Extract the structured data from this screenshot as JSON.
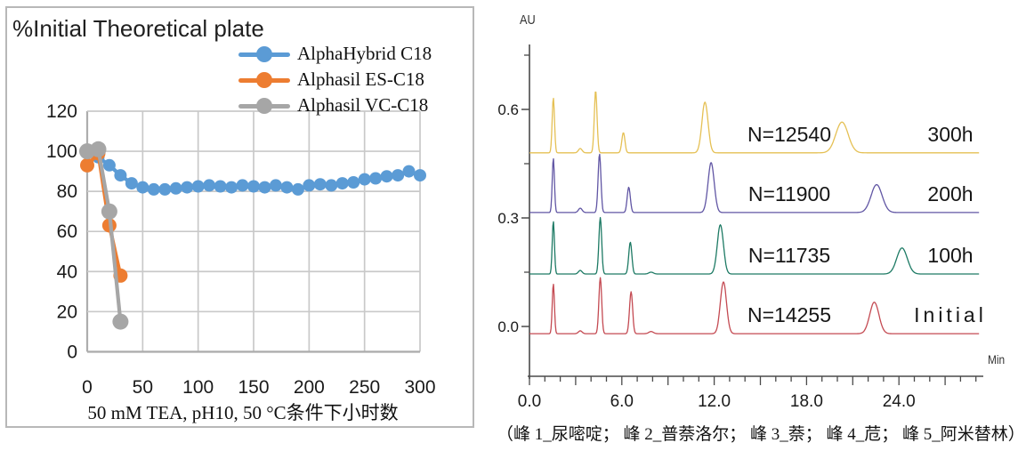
{
  "chart_data": [
    {
      "type": "line",
      "title": "%Initial Theoretical plate",
      "xlabel": "50 mM TEA, pH10, 50 °C条件下小时数",
      "xlim": [
        0,
        300
      ],
      "ylim": [
        0,
        120
      ],
      "xticks": [
        0,
        50,
        100,
        150,
        200,
        250,
        300
      ],
      "yticks": [
        0,
        20,
        40,
        60,
        80,
        100,
        120
      ],
      "grid": true,
      "legend_position": "top-right",
      "grid_color": "#c9c9c9",
      "axis_color": "#adadad",
      "text_color": "#1a1a1a",
      "series": [
        {
          "name": "AlphaHybrid C18",
          "color": "#5b9bd5",
          "marker_r": 7,
          "x": [
            0,
            10,
            20,
            30,
            40,
            50,
            60,
            70,
            80,
            90,
            100,
            110,
            120,
            130,
            140,
            150,
            160,
            170,
            180,
            190,
            200,
            210,
            220,
            230,
            240,
            250,
            260,
            270,
            280,
            290,
            300
          ],
          "y": [
            100,
            97,
            93,
            88,
            84,
            82,
            81,
            81,
            81.5,
            82,
            82.5,
            83,
            82.5,
            82,
            83,
            82.5,
            82,
            83,
            82,
            81,
            83,
            83.5,
            83,
            84,
            84.5,
            86,
            86.5,
            87.5,
            88,
            90,
            88
          ]
        },
        {
          "name": "Alphasil ES-C18",
          "color": "#ed7d31",
          "marker_r": 8,
          "x": [
            0,
            10,
            20,
            30
          ],
          "y": [
            93,
            99,
            63,
            38
          ]
        },
        {
          "name": "Alphasil VC-C18",
          "color": "#a6a6a6",
          "marker_r": 9,
          "x": [
            0,
            10,
            20,
            30
          ],
          "y": [
            100,
            101,
            70,
            15
          ]
        }
      ]
    },
    {
      "type": "chromatogram",
      "ylabel": "AU",
      "xlabel": "Min",
      "caption": "（峰 1_尿嘧啶； 峰 2_普萘洛尔； 峰 3_萘； 峰 4_苊； 峰 5_阿米替林）",
      "ylim": [
        0,
        0.78
      ],
      "yticks": [
        0,
        0.3,
        0.6
      ],
      "ytick_labels": [
        "0.0",
        "0.3",
        "0.6"
      ],
      "y_minor_ticks": [
        0.15,
        0.45,
        0.75
      ],
      "xlim": [
        0,
        29.3
      ],
      "xticks": [
        0,
        6,
        12,
        18,
        24
      ],
      "xtick_labels": [
        "0.0",
        "6.0",
        "12.0",
        "18.0",
        "24.0"
      ],
      "axis_color": "#4a4a4a",
      "text_color": "#1a1a1a",
      "traces": [
        {
          "plates_label": "N=12540",
          "time_label": "300h",
          "color": "#e5c054",
          "baseline_au": 0.48,
          "peaks": [
            [
              1.55,
              0.152,
              0.075
            ],
            [
              3.3,
              0.012,
              0.12
            ],
            [
              4.3,
              0.172,
              0.09
            ],
            [
              6.1,
              0.056,
              0.1
            ],
            [
              11.4,
              0.14,
              0.2
            ],
            [
              20.3,
              0.085,
              0.4
            ]
          ]
        },
        {
          "plates_label": "N=11900",
          "time_label": "200h",
          "color": "#6156a4",
          "baseline_au": 0.315,
          "peaks": [
            [
              1.55,
              0.15,
              0.07
            ],
            [
              3.3,
              0.012,
              0.12
            ],
            [
              4.55,
              0.162,
              0.09
            ],
            [
              6.45,
              0.07,
              0.1
            ],
            [
              11.8,
              0.138,
              0.2
            ],
            [
              22.55,
              0.077,
              0.36
            ]
          ]
        },
        {
          "plates_label": "N=11735",
          "time_label": "100h",
          "color": "#1d7a64",
          "baseline_au": 0.145,
          "peaks": [
            [
              1.55,
              0.146,
              0.07
            ],
            [
              3.3,
              0.01,
              0.12
            ],
            [
              4.6,
              0.156,
              0.09
            ],
            [
              6.55,
              0.088,
              0.1
            ],
            [
              7.9,
              0.005,
              0.15
            ],
            [
              12.4,
              0.136,
              0.2
            ],
            [
              24.2,
              0.072,
              0.34
            ]
          ]
        },
        {
          "plates_label": "N=14255",
          "time_label": "Initial",
          "letter_spacing": 4,
          "color": "#c44a52",
          "baseline_au": -0.02,
          "peaks": [
            [
              1.55,
              0.138,
              0.07
            ],
            [
              3.3,
              0.008,
              0.12
            ],
            [
              4.6,
              0.155,
              0.09
            ],
            [
              6.6,
              0.116,
              0.1
            ],
            [
              7.9,
              0.006,
              0.15
            ],
            [
              12.6,
              0.143,
              0.2
            ],
            [
              22.4,
              0.087,
              0.3
            ]
          ]
        }
      ]
    }
  ]
}
